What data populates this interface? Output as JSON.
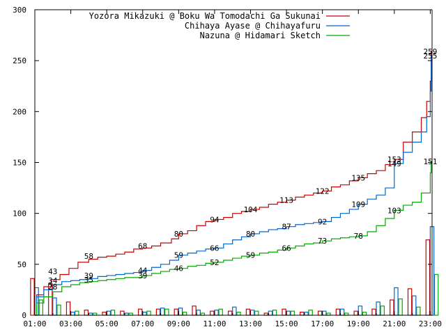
{
  "chart_data": {
    "type": "line",
    "ylim": [
      0,
      300
    ],
    "y_ticks": [
      "0",
      "50",
      "100",
      "150",
      "200",
      "250",
      "300"
    ],
    "y_tick_values": [
      0,
      50,
      100,
      150,
      200,
      250,
      300
    ],
    "x_ticks": [
      "01:00",
      "03:00",
      "05:00",
      "07:00",
      "09:00",
      "11:00",
      "13:00",
      "15:00",
      "17:00",
      "19:00",
      "21:00",
      "23:00"
    ],
    "x_tick_hours": [
      1,
      3,
      5,
      7,
      9,
      11,
      13,
      15,
      17,
      19,
      21,
      23
    ],
    "xlim_hours": [
      1,
      23.1
    ],
    "grid": false,
    "legend_position": "top-right",
    "series": [
      {
        "name": "Yozora Mikazuki @ Boku Wa Tomodachi Ga Sukunai",
        "color": "#cc0000",
        "cumulative": [
          [
            1,
            0
          ],
          [
            1.1,
            20
          ],
          [
            1.5,
            28
          ],
          [
            1.9,
            35
          ],
          [
            2.4,
            40
          ],
          [
            2.9,
            46
          ],
          [
            3.4,
            52
          ],
          [
            4,
            55
          ],
          [
            4.5,
            57
          ],
          [
            5,
            58
          ],
          [
            5.5,
            60
          ],
          [
            6,
            62
          ],
          [
            6.5,
            65
          ],
          [
            7,
            66
          ],
          [
            7.5,
            68
          ],
          [
            8,
            71
          ],
          [
            8.6,
            75
          ],
          [
            9,
            80
          ],
          [
            9.5,
            83
          ],
          [
            10,
            88
          ],
          [
            10.5,
            92
          ],
          [
            11,
            94
          ],
          [
            11.5,
            96
          ],
          [
            12,
            100
          ],
          [
            12.5,
            102
          ],
          [
            13,
            104
          ],
          [
            13.5,
            106
          ],
          [
            14,
            109
          ],
          [
            14.5,
            111
          ],
          [
            15,
            113
          ],
          [
            15.5,
            116
          ],
          [
            16,
            118
          ],
          [
            16.5,
            120
          ],
          [
            17,
            122
          ],
          [
            17.5,
            126
          ],
          [
            18,
            128
          ],
          [
            18.5,
            132
          ],
          [
            19,
            135
          ],
          [
            19.5,
            139
          ],
          [
            20,
            142
          ],
          [
            20.5,
            148
          ],
          [
            21,
            153
          ],
          [
            21.5,
            170
          ],
          [
            22,
            180
          ],
          [
            22.5,
            194
          ],
          [
            22.8,
            210
          ],
          [
            23,
            230
          ],
          [
            23.05,
            259
          ]
        ],
        "point_labels": [
          [
            2,
            43
          ],
          [
            4,
            58
          ],
          [
            7,
            68
          ],
          [
            9,
            80
          ],
          [
            11,
            94
          ],
          [
            13,
            104
          ],
          [
            15,
            113
          ],
          [
            17,
            122
          ],
          [
            19,
            135
          ],
          [
            21,
            153
          ],
          [
            23,
            259
          ]
        ],
        "hourly": [
          [
            1,
            36
          ],
          [
            2,
            31
          ],
          [
            3,
            13
          ],
          [
            4,
            5
          ],
          [
            5,
            3
          ],
          [
            6,
            4
          ],
          [
            7,
            6
          ],
          [
            8,
            6
          ],
          [
            9,
            6
          ],
          [
            10,
            9
          ],
          [
            11,
            4
          ],
          [
            12,
            4
          ],
          [
            13,
            6
          ],
          [
            14,
            2
          ],
          [
            15,
            6
          ],
          [
            16,
            3
          ],
          [
            17,
            4
          ],
          [
            18,
            6
          ],
          [
            19,
            4
          ],
          [
            20,
            6
          ],
          [
            21,
            15
          ],
          [
            22,
            26
          ],
          [
            23,
            74
          ]
        ]
      },
      {
        "name": "Chihaya Ayase @ Chihayafuru",
        "color": "#0066cc",
        "cumulative": [
          [
            1,
            0
          ],
          [
            1.1,
            18
          ],
          [
            1.5,
            25
          ],
          [
            2,
            30
          ],
          [
            2.5,
            33
          ],
          [
            3,
            34
          ],
          [
            3.5,
            35
          ],
          [
            4,
            36
          ],
          [
            4.5,
            38
          ],
          [
            5,
            39
          ],
          [
            5.5,
            40
          ],
          [
            6,
            41
          ],
          [
            6.5,
            42
          ],
          [
            7,
            44
          ],
          [
            7.5,
            47
          ],
          [
            8,
            50
          ],
          [
            8.5,
            54
          ],
          [
            9,
            59
          ],
          [
            9.5,
            61
          ],
          [
            10,
            63
          ],
          [
            10.5,
            65
          ],
          [
            11,
            66
          ],
          [
            11.5,
            70
          ],
          [
            12,
            74
          ],
          [
            12.5,
            77
          ],
          [
            13,
            80
          ],
          [
            13.5,
            82
          ],
          [
            14,
            84
          ],
          [
            14.5,
            85
          ],
          [
            15,
            87
          ],
          [
            15.5,
            89
          ],
          [
            16,
            90
          ],
          [
            16.5,
            91
          ],
          [
            17,
            92
          ],
          [
            17.5,
            96
          ],
          [
            18,
            100
          ],
          [
            18.5,
            104
          ],
          [
            19,
            109
          ],
          [
            19.5,
            114
          ],
          [
            20,
            118
          ],
          [
            20.5,
            125
          ],
          [
            21,
            149
          ],
          [
            21.5,
            160
          ],
          [
            22,
            170
          ],
          [
            22.5,
            180
          ],
          [
            22.8,
            195
          ],
          [
            23,
            220
          ],
          [
            23.05,
            255
          ]
        ],
        "point_labels": [
          [
            2,
            34
          ],
          [
            4,
            39
          ],
          [
            7,
            44
          ],
          [
            9,
            59
          ],
          [
            11,
            66
          ],
          [
            13,
            80
          ],
          [
            15,
            87
          ],
          [
            17,
            92
          ],
          [
            19,
            109
          ],
          [
            21,
            149
          ],
          [
            23,
            255
          ]
        ],
        "hourly": [
          [
            1,
            27
          ],
          [
            2,
            17
          ],
          [
            3,
            3
          ],
          [
            4,
            2
          ],
          [
            5,
            4
          ],
          [
            6,
            2
          ],
          [
            7,
            3
          ],
          [
            8,
            7
          ],
          [
            9,
            7
          ],
          [
            10,
            5
          ],
          [
            11,
            5
          ],
          [
            12,
            8
          ],
          [
            13,
            5
          ],
          [
            14,
            4
          ],
          [
            15,
            4
          ],
          [
            16,
            3
          ],
          [
            17,
            4
          ],
          [
            18,
            6
          ],
          [
            19,
            9
          ],
          [
            20,
            13
          ],
          [
            21,
            27
          ],
          [
            22,
            19
          ],
          [
            23,
            87
          ]
        ]
      },
      {
        "name": "Nazuna @ Hidamari Sketch",
        "color": "#00aa00",
        "cumulative": [
          [
            1,
            0
          ],
          [
            1.1,
            12
          ],
          [
            1.5,
            18
          ],
          [
            2,
            23
          ],
          [
            2.5,
            28
          ],
          [
            3,
            30
          ],
          [
            3.5,
            32
          ],
          [
            4,
            33
          ],
          [
            4.5,
            34
          ],
          [
            5,
            35
          ],
          [
            5.5,
            36
          ],
          [
            6,
            37
          ],
          [
            6.5,
            37
          ],
          [
            7,
            39
          ],
          [
            7.5,
            41
          ],
          [
            8,
            43
          ],
          [
            8.5,
            45
          ],
          [
            9,
            46
          ],
          [
            9.5,
            48
          ],
          [
            10,
            49
          ],
          [
            10.5,
            51
          ],
          [
            11,
            52
          ],
          [
            11.5,
            54
          ],
          [
            12,
            56
          ],
          [
            12.5,
            58
          ],
          [
            13,
            59
          ],
          [
            13.5,
            61
          ],
          [
            14,
            62
          ],
          [
            14.5,
            64
          ],
          [
            15,
            66
          ],
          [
            15.5,
            68
          ],
          [
            16,
            70
          ],
          [
            16.5,
            71
          ],
          [
            17,
            73
          ],
          [
            17.5,
            75
          ],
          [
            18,
            76
          ],
          [
            18.5,
            77
          ],
          [
            19,
            78
          ],
          [
            19.5,
            82
          ],
          [
            20,
            88
          ],
          [
            20.5,
            95
          ],
          [
            21,
            103
          ],
          [
            21.5,
            108
          ],
          [
            22,
            111
          ],
          [
            22.5,
            120
          ],
          [
            23,
            140
          ],
          [
            23.05,
            151
          ]
        ],
        "point_labels": [
          [
            2,
            28
          ],
          [
            4,
            35
          ],
          [
            7,
            39
          ],
          [
            9,
            46
          ],
          [
            11,
            52
          ],
          [
            13,
            59
          ],
          [
            15,
            66
          ],
          [
            17,
            73
          ],
          [
            19,
            78
          ],
          [
            21,
            103
          ],
          [
            23,
            151
          ]
        ],
        "hourly": [
          [
            1,
            15
          ],
          [
            2,
            10
          ],
          [
            3,
            4
          ],
          [
            4,
            2
          ],
          [
            5,
            5
          ],
          [
            6,
            2
          ],
          [
            7,
            4
          ],
          [
            8,
            6
          ],
          [
            9,
            3
          ],
          [
            10,
            2
          ],
          [
            11,
            6
          ],
          [
            12,
            3
          ],
          [
            13,
            4
          ],
          [
            14,
            5
          ],
          [
            15,
            4
          ],
          [
            16,
            5
          ],
          [
            17,
            2
          ],
          [
            18,
            2
          ],
          [
            19,
            3
          ],
          [
            20,
            9
          ],
          [
            21,
            16
          ],
          [
            22,
            8
          ],
          [
            23,
            40
          ]
        ]
      }
    ]
  }
}
